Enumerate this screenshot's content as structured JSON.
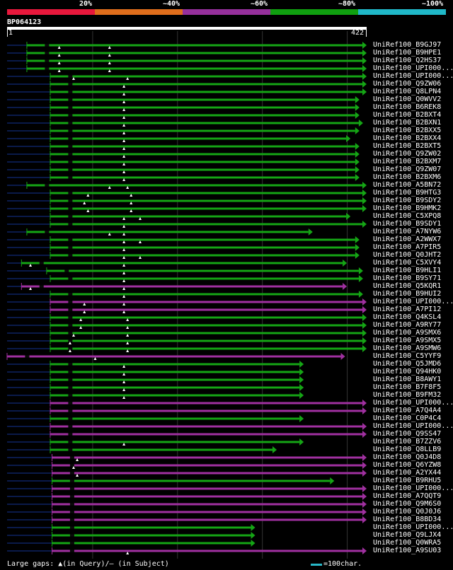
{
  "legend": {
    "segments": [
      {
        "label": "",
        "color": "#e8183c"
      },
      {
        "label": "20%",
        "color": "#e06e1c"
      },
      {
        "label": "~40%",
        "color": "#96309c"
      },
      {
        "label": "~60%",
        "color": "#10a010"
      },
      {
        "label": "~80%",
        "color": "#20b8c8"
      }
    ],
    "last_label": "~100%"
  },
  "query": {
    "id": "BP064123",
    "start": "1",
    "end": "422"
  },
  "colors": {
    "green": "#15a515",
    "purple": "#a030a0",
    "navy": "#0a1a4a",
    "dark": "#0a0a0a",
    "grid": "#333333"
  },
  "hits": [
    {
      "label": "UniRef100_B9GJ97",
      "color": "green",
      "start": 0.055,
      "end": 1.0,
      "gaps": [
        0.145,
        0.285
      ]
    },
    {
      "label": "UniRef100_B9HPE1",
      "color": "green",
      "start": 0.055,
      "end": 1.0,
      "gaps": [
        0.145,
        0.285
      ]
    },
    {
      "label": "UniRef100_Q2HS37",
      "color": "green",
      "start": 0.055,
      "end": 1.0,
      "gaps": [
        0.145,
        0.285
      ]
    },
    {
      "label": "UniRef100_UPI000...",
      "color": "green",
      "start": 0.055,
      "end": 1.0,
      "gaps": [
        0.145,
        0.285
      ]
    },
    {
      "label": "UniRef100_UPI000...",
      "color": "green",
      "start": 0.12,
      "end": 1.0,
      "gaps": [
        0.185,
        0.335
      ]
    },
    {
      "label": "UniRef100_Q9ZW06",
      "color": "green",
      "start": 0.12,
      "end": 1.0,
      "gaps": [
        0.325
      ]
    },
    {
      "label": "UniRef100_Q8LPN4",
      "color": "green",
      "start": 0.12,
      "end": 1.0,
      "gaps": [
        0.325
      ]
    },
    {
      "label": "UniRef100_Q0WVV2",
      "color": "green",
      "start": 0.12,
      "end": 0.98,
      "gaps": [
        0.325
      ]
    },
    {
      "label": "UniRef100_B6REK8",
      "color": "green",
      "start": 0.12,
      "end": 0.98,
      "gaps": [
        0.325
      ]
    },
    {
      "label": "UniRef100_B2BXT4",
      "color": "green",
      "start": 0.12,
      "end": 0.98,
      "gaps": [
        0.325
      ]
    },
    {
      "label": "UniRef100_B2BXN1",
      "color": "green",
      "start": 0.12,
      "end": 0.99,
      "gaps": [
        0.325
      ]
    },
    {
      "label": "UniRef100_B2BXX5",
      "color": "green",
      "start": 0.12,
      "end": 0.98,
      "gaps": [
        0.325
      ]
    },
    {
      "label": "UniRef100_B2BXX4",
      "color": "green",
      "start": 0.12,
      "end": 0.955,
      "gaps": [
        0.325
      ]
    },
    {
      "label": "UniRef100_B2BXT5",
      "color": "green",
      "start": 0.12,
      "end": 0.98,
      "gaps": [
        0.325
      ]
    },
    {
      "label": "UniRef100_Q9ZW02",
      "color": "green",
      "start": 0.12,
      "end": 0.98,
      "gaps": [
        0.325
      ]
    },
    {
      "label": "UniRef100_B2BXM7",
      "color": "green",
      "start": 0.12,
      "end": 0.98,
      "gaps": [
        0.325
      ]
    },
    {
      "label": "UniRef100_Q9ZW07",
      "color": "green",
      "start": 0.12,
      "end": 0.98,
      "gaps": [
        0.325
      ]
    },
    {
      "label": "UniRef100_B2BXM6",
      "color": "green",
      "start": 0.12,
      "end": 0.98,
      "gaps": [
        0.325
      ]
    },
    {
      "label": "UniRef100_A5BN72",
      "color": "green",
      "start": 0.055,
      "end": 1.0,
      "gaps": [
        0.285,
        0.335
      ]
    },
    {
      "label": "UniRef100_B9HTG3",
      "color": "green",
      "start": 0.12,
      "end": 1.0,
      "gaps": [
        0.225,
        0.345
      ]
    },
    {
      "label": "UniRef100_B9SDY2",
      "color": "green",
      "start": 0.12,
      "end": 1.0,
      "gaps": [
        0.215,
        0.345
      ]
    },
    {
      "label": "UniRef100_B9HMK2",
      "color": "green",
      "start": 0.12,
      "end": 1.0,
      "gaps": [
        0.225,
        0.345
      ]
    },
    {
      "label": "UniRef100_C5XPQ8",
      "color": "green",
      "start": 0.12,
      "end": 0.955,
      "gaps": [
        0.325,
        0.37
      ]
    },
    {
      "label": "UniRef100_B9SDY1",
      "color": "green",
      "start": 0.12,
      "end": 1.0,
      "gaps": [
        0.325
      ]
    },
    {
      "label": "UniRef100_A7NYW6",
      "color": "green",
      "start": 0.055,
      "end": 0.85,
      "gaps": [
        0.285,
        0.325
      ]
    },
    {
      "label": "UniRef100_A2WWX7",
      "color": "green",
      "start": 0.12,
      "end": 0.98,
      "gaps": [
        0.325,
        0.37
      ]
    },
    {
      "label": "UniRef100_A7PIR5",
      "color": "green",
      "start": 0.12,
      "end": 0.98,
      "gaps": [
        0.325
      ]
    },
    {
      "label": "UniRef100_Q0JHT2",
      "color": "green",
      "start": 0.12,
      "end": 0.98,
      "gaps": [
        0.325,
        0.37
      ]
    },
    {
      "label": "UniRef100_C5XVY4",
      "color": "green",
      "start": 0.04,
      "end": 0.945,
      "gaps": [
        0.065,
        0.325
      ]
    },
    {
      "label": "UniRef100_B9HLI1",
      "color": "green",
      "start": 0.11,
      "end": 0.99,
      "gaps": [
        0.325
      ]
    },
    {
      "label": "UniRef100_B9SY71",
      "color": "green",
      "start": 0.12,
      "end": 0.99,
      "gaps": [
        0.325
      ]
    },
    {
      "label": "UniRef100_Q5KQR1",
      "color": "purple",
      "start": 0.04,
      "end": 0.945,
      "gaps": [
        0.065,
        0.325
      ]
    },
    {
      "label": "UniRef100_B9HUI2",
      "color": "green",
      "start": 0.12,
      "end": 0.99,
      "gaps": [
        0.325
      ]
    },
    {
      "label": "UniRef100_UPI000...",
      "color": "purple",
      "start": 0.12,
      "end": 1.0,
      "gaps": [
        0.215,
        0.325
      ]
    },
    {
      "label": "UniRef100_A7PI12",
      "color": "purple",
      "start": 0.12,
      "end": 1.0,
      "gaps": [
        0.215,
        0.325
      ]
    },
    {
      "label": "UniRef100_Q4KSL4",
      "color": "green",
      "start": 0.12,
      "end": 1.0,
      "gaps": [
        0.205,
        0.335
      ]
    },
    {
      "label": "UniRef100_A9RY77",
      "color": "green",
      "start": 0.12,
      "end": 1.0,
      "gaps": [
        0.205,
        0.335
      ]
    },
    {
      "label": "UniRef100_A9SMX6",
      "color": "green",
      "start": 0.12,
      "end": 1.0,
      "gaps": [
        0.185,
        0.335
      ]
    },
    {
      "label": "UniRef100_A9SMX5",
      "color": "green",
      "start": 0.12,
      "end": 1.0,
      "gaps": [
        0.175,
        0.335
      ]
    },
    {
      "label": "UniRef100_A9SMW6",
      "color": "green",
      "start": 0.12,
      "end": 1.0,
      "gaps": [
        0.175,
        0.335
      ]
    },
    {
      "label": "UniRef100_C5YYF9",
      "color": "purple",
      "start": 0.0,
      "end": 0.94,
      "gaps": [
        0.245
      ]
    },
    {
      "label": "UniRef100_Q5JMD6",
      "color": "green",
      "start": 0.12,
      "end": 0.825,
      "gaps": [
        0.325
      ]
    },
    {
      "label": "UniRef100_Q94HK0",
      "color": "green",
      "start": 0.12,
      "end": 0.825,
      "gaps": [
        0.325
      ]
    },
    {
      "label": "UniRef100_B8AWY1",
      "color": "green",
      "start": 0.12,
      "end": 0.825,
      "gaps": [
        0.325
      ]
    },
    {
      "label": "UniRef100_B7F8F5",
      "color": "green",
      "start": 0.12,
      "end": 0.825,
      "gaps": [
        0.325
      ]
    },
    {
      "label": "UniRef100_B9FM32",
      "color": "green",
      "start": 0.12,
      "end": 0.825,
      "gaps": [
        0.325
      ]
    },
    {
      "label": "UniRef100_UPI000...",
      "color": "purple",
      "start": 0.12,
      "end": 1.0,
      "gaps": []
    },
    {
      "label": "UniRef100_A7Q4A4",
      "color": "purple",
      "start": 0.12,
      "end": 1.0,
      "gaps": []
    },
    {
      "label": "UniRef100_C0P4C4",
      "color": "green",
      "start": 0.12,
      "end": 0.825,
      "gaps": []
    },
    {
      "label": "UniRef100_UPI000...",
      "color": "purple",
      "start": 0.12,
      "end": 1.0,
      "gaps": []
    },
    {
      "label": "UniRef100_Q9SS47",
      "color": "purple",
      "start": 0.12,
      "end": 1.0,
      "gaps": []
    },
    {
      "label": "UniRef100_B7ZZV6",
      "color": "green",
      "start": 0.12,
      "end": 0.825,
      "gaps": [
        0.325
      ]
    },
    {
      "label": "UniRef100_Q8LLB9",
      "color": "green",
      "start": 0.12,
      "end": 0.75,
      "gaps": []
    },
    {
      "label": "UniRef100_Q0J4D8",
      "color": "purple",
      "start": 0.125,
      "end": 1.0,
      "gaps": [
        0.195
      ]
    },
    {
      "label": "UniRef100_Q6YZW8",
      "color": "purple",
      "start": 0.125,
      "end": 1.0,
      "gaps": [
        0.185
      ]
    },
    {
      "label": "UniRef100_A2YX44",
      "color": "purple",
      "start": 0.125,
      "end": 1.0,
      "gaps": [
        0.195
      ]
    },
    {
      "label": "UniRef100_B9RHU5",
      "color": "green",
      "start": 0.125,
      "end": 0.91,
      "gaps": []
    },
    {
      "label": "UniRef100_UPI000...",
      "color": "purple",
      "start": 0.125,
      "end": 1.0,
      "gaps": []
    },
    {
      "label": "UniRef100_A7QQT9",
      "color": "purple",
      "start": 0.125,
      "end": 1.0,
      "gaps": []
    },
    {
      "label": "UniRef100_Q9M6S0",
      "color": "purple",
      "start": 0.125,
      "end": 1.0,
      "gaps": []
    },
    {
      "label": "UniRef100_Q0J0J6",
      "color": "purple",
      "start": 0.125,
      "end": 1.0,
      "gaps": []
    },
    {
      "label": "UniRef100_B8BD34",
      "color": "purple",
      "start": 0.125,
      "end": 1.0,
      "gaps": []
    },
    {
      "label": "UniRef100_UPI000...",
      "color": "green",
      "start": 0.125,
      "end": 0.69,
      "gaps": []
    },
    {
      "label": "UniRef100_Q9LJX4",
      "color": "green",
      "start": 0.125,
      "end": 0.69,
      "gaps": []
    },
    {
      "label": "UniRef100_Q0WRA5",
      "color": "green",
      "start": 0.125,
      "end": 0.69,
      "gaps": []
    },
    {
      "label": "UniRef100_A9SU03",
      "color": "purple",
      "start": 0.125,
      "end": 1.0,
      "gaps": [
        0.335
      ]
    }
  ],
  "footer": {
    "gaps_text": "Large gaps: ▲(in Query)/– (in Subject)",
    "scale_text": "=100char."
  }
}
